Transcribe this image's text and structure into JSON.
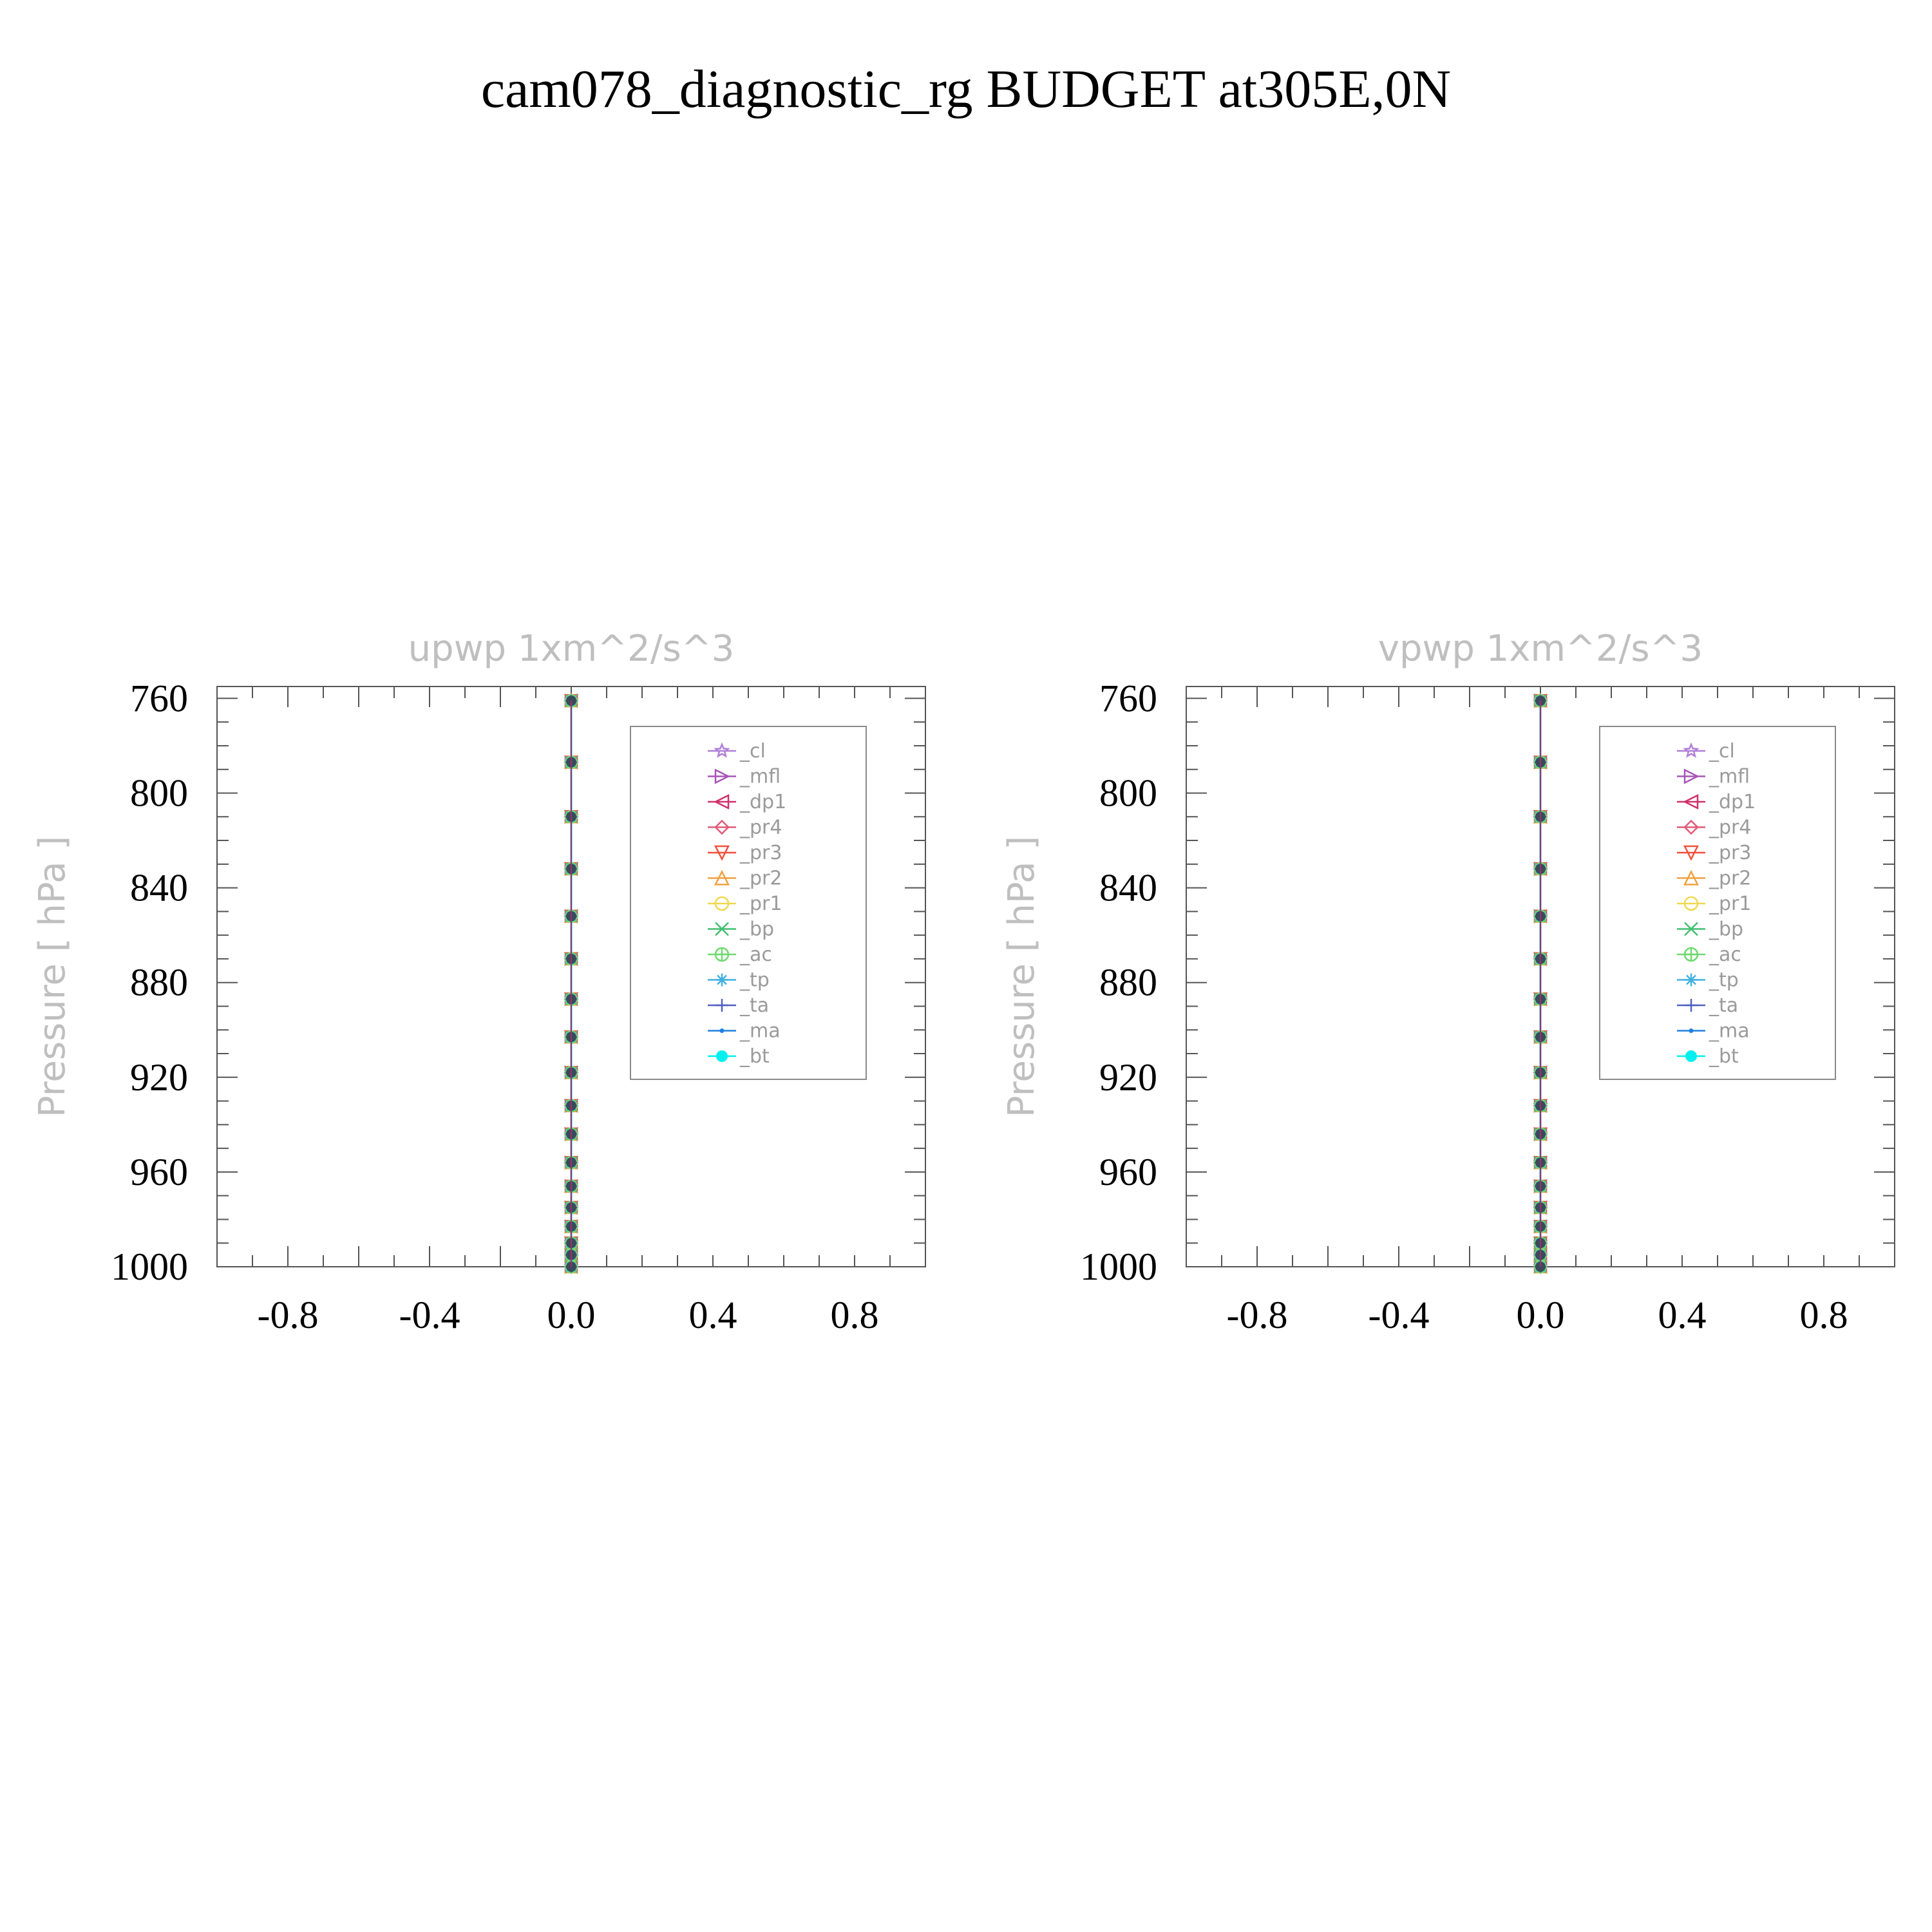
{
  "title": "cam078_diagnostic_rg  BUDGET at305E,0N",
  "y_axis_label": "Pressure  [ hPa ]",
  "colors": {
    "background": "#ffffff",
    "axis": "#555555",
    "muted_text": "#bfbfbf",
    "tick_label": "#000000"
  },
  "legend_entries": [
    {
      "label": "_cl",
      "color": "#b07fd8",
      "marker": "star"
    },
    {
      "label": "_mfl",
      "color": "#a855b5",
      "marker": "triangle-right"
    },
    {
      "label": "_dp1",
      "color": "#d0306a",
      "marker": "triangle-left"
    },
    {
      "label": "_pr4",
      "color": "#e05a78",
      "marker": "diamond"
    },
    {
      "label": "_pr3",
      "color": "#f0503c",
      "marker": "triangle-down"
    },
    {
      "label": "_pr2",
      "color": "#f0a040",
      "marker": "triangle-up"
    },
    {
      "label": "_pr1",
      "color": "#f0d850",
      "marker": "circle"
    },
    {
      "label": "_bp",
      "color": "#40c070",
      "marker": "cross-x"
    },
    {
      "label": "_ac",
      "color": "#70d870",
      "marker": "circle-plus"
    },
    {
      "label": "_tp",
      "color": "#40b0e0",
      "marker": "asterisk"
    },
    {
      "label": "_ta",
      "color": "#5060c0",
      "marker": "plus"
    },
    {
      "label": "_ma",
      "color": "#2080e0",
      "marker": "dot"
    },
    {
      "label": "_bt",
      "color": "#00f0f0",
      "marker": "filled-circle"
    }
  ],
  "chart_data": [
    {
      "type": "line",
      "title": "upwp    1xm^2/s^3",
      "xlabel": "",
      "ylabel": "Pressure  [ hPa ]",
      "xlim": [
        -1.0,
        1.0
      ],
      "ylim": [
        1000,
        755
      ],
      "y_inverted": true,
      "xticks": [
        "-0.8",
        "-0.4",
        "0.0",
        "0.4",
        "0.8"
      ],
      "xtick_values": [
        -0.8,
        -0.4,
        0.0,
        0.4,
        0.8
      ],
      "yticks": [
        "760",
        "800",
        "840",
        "880",
        "920",
        "960",
        "1000"
      ],
      "ytick_values": [
        760,
        800,
        840,
        880,
        920,
        960,
        1000
      ],
      "legend_position": "top-right",
      "levels": [
        761,
        787,
        810,
        832,
        852,
        870,
        887,
        903,
        918,
        932,
        944,
        956,
        966,
        975,
        983,
        990,
        995,
        1000
      ],
      "series": [
        {
          "name": "_cl",
          "values": [
            0,
            0,
            0,
            0,
            0,
            0,
            0,
            0,
            0,
            0,
            0,
            0,
            0,
            0,
            0,
            0,
            0,
            0
          ]
        },
        {
          "name": "_mfl",
          "values": [
            0,
            0,
            0,
            0,
            0,
            0,
            0,
            0,
            0,
            0,
            0,
            0,
            0,
            0,
            0,
            0,
            0,
            0
          ]
        },
        {
          "name": "_dp1",
          "values": [
            0,
            0,
            0,
            0,
            0,
            0,
            0,
            0,
            0,
            0,
            0,
            0,
            0,
            0,
            0,
            0,
            0,
            0
          ]
        },
        {
          "name": "_pr4",
          "values": [
            0,
            0,
            0,
            0,
            0,
            0,
            0,
            0,
            0,
            0,
            0,
            0,
            0,
            0,
            0,
            0,
            0,
            0
          ]
        },
        {
          "name": "_pr3",
          "values": [
            0,
            0,
            0,
            0,
            0,
            0,
            0,
            0,
            0,
            0,
            0,
            0,
            0,
            0,
            0,
            0,
            0,
            0
          ]
        },
        {
          "name": "_pr2",
          "values": [
            0,
            0,
            0,
            0,
            0,
            0,
            0,
            0,
            0,
            0,
            0,
            0,
            0,
            0,
            0,
            0,
            0,
            0
          ]
        },
        {
          "name": "_pr1",
          "values": [
            0,
            0,
            0,
            0,
            0,
            0,
            0,
            0,
            0,
            0,
            0,
            0,
            0,
            0,
            0,
            0,
            0,
            0
          ]
        },
        {
          "name": "_bp",
          "values": [
            0,
            0,
            0,
            0,
            0,
            0,
            0,
            0,
            0,
            0,
            0,
            0,
            0,
            0,
            0,
            0,
            0,
            0
          ]
        },
        {
          "name": "_ac",
          "values": [
            0,
            0,
            0,
            0,
            0,
            0,
            0,
            0,
            0,
            0,
            0,
            0,
            0,
            0,
            0,
            0,
            0,
            0
          ]
        },
        {
          "name": "_tp",
          "values": [
            0,
            0,
            0,
            0,
            0,
            0,
            0,
            0,
            0,
            0,
            0,
            0,
            0,
            0,
            0,
            0,
            0,
            0
          ]
        },
        {
          "name": "_ta",
          "values": [
            0,
            0,
            0,
            0,
            0,
            0,
            0,
            0,
            0,
            0,
            0,
            0,
            0,
            0,
            0,
            0,
            0,
            0
          ]
        },
        {
          "name": "_ma",
          "values": [
            0,
            0,
            0,
            0,
            0,
            0,
            0,
            0,
            0,
            0,
            0,
            0,
            0,
            0,
            0,
            0,
            0,
            0
          ]
        },
        {
          "name": "_bt",
          "values": [
            0,
            0,
            0,
            0,
            0,
            0,
            0,
            0,
            0,
            0,
            0,
            0,
            0,
            0,
            0,
            0,
            0,
            0
          ]
        }
      ]
    },
    {
      "type": "line",
      "title": "vpwp    1xm^2/s^3",
      "xlabel": "",
      "ylabel": "Pressure  [ hPa ]",
      "xlim": [
        -1.0,
        1.0
      ],
      "ylim": [
        1000,
        755
      ],
      "y_inverted": true,
      "xticks": [
        "-0.8",
        "-0.4",
        "0.0",
        "0.4",
        "0.8"
      ],
      "xtick_values": [
        -0.8,
        -0.4,
        0.0,
        0.4,
        0.8
      ],
      "yticks": [
        "760",
        "800",
        "840",
        "880",
        "920",
        "960",
        "1000"
      ],
      "ytick_values": [
        760,
        800,
        840,
        880,
        920,
        960,
        1000
      ],
      "legend_position": "top-right",
      "levels": [
        761,
        787,
        810,
        832,
        852,
        870,
        887,
        903,
        918,
        932,
        944,
        956,
        966,
        975,
        983,
        990,
        995,
        1000
      ],
      "series": [
        {
          "name": "_cl",
          "values": [
            0,
            0,
            0,
            0,
            0,
            0,
            0,
            0,
            0,
            0,
            0,
            0,
            0,
            0,
            0,
            0,
            0,
            0
          ]
        },
        {
          "name": "_mfl",
          "values": [
            0,
            0,
            0,
            0,
            0,
            0,
            0,
            0,
            0,
            0,
            0,
            0,
            0,
            0,
            0,
            0,
            0,
            0
          ]
        },
        {
          "name": "_dp1",
          "values": [
            0,
            0,
            0,
            0,
            0,
            0,
            0,
            0,
            0,
            0,
            0,
            0,
            0,
            0,
            0,
            0,
            0,
            0
          ]
        },
        {
          "name": "_pr4",
          "values": [
            0,
            0,
            0,
            0,
            0,
            0,
            0,
            0,
            0,
            0,
            0,
            0,
            0,
            0,
            0,
            0,
            0,
            0
          ]
        },
        {
          "name": "_pr3",
          "values": [
            0,
            0,
            0,
            0,
            0,
            0,
            0,
            0,
            0,
            0,
            0,
            0,
            0,
            0,
            0,
            0,
            0,
            0
          ]
        },
        {
          "name": "_pr2",
          "values": [
            0,
            0,
            0,
            0,
            0,
            0,
            0,
            0,
            0,
            0,
            0,
            0,
            0,
            0,
            0,
            0,
            0,
            0
          ]
        },
        {
          "name": "_pr1",
          "values": [
            0,
            0,
            0,
            0,
            0,
            0,
            0,
            0,
            0,
            0,
            0,
            0,
            0,
            0,
            0,
            0,
            0,
            0
          ]
        },
        {
          "name": "_bp",
          "values": [
            0,
            0,
            0,
            0,
            0,
            0,
            0,
            0,
            0,
            0,
            0,
            0,
            0,
            0,
            0,
            0,
            0,
            0
          ]
        },
        {
          "name": "_ac",
          "values": [
            0,
            0,
            0,
            0,
            0,
            0,
            0,
            0,
            0,
            0,
            0,
            0,
            0,
            0,
            0,
            0,
            0,
            0
          ]
        },
        {
          "name": "_tp",
          "values": [
            0,
            0,
            0,
            0,
            0,
            0,
            0,
            0,
            0,
            0,
            0,
            0,
            0,
            0,
            0,
            0,
            0,
            0
          ]
        },
        {
          "name": "_ta",
          "values": [
            0,
            0,
            0,
            0,
            0,
            0,
            0,
            0,
            0,
            0,
            0,
            0,
            0,
            0,
            0,
            0,
            0,
            0
          ]
        },
        {
          "name": "_ma",
          "values": [
            0,
            0,
            0,
            0,
            0,
            0,
            0,
            0,
            0,
            0,
            0,
            0,
            0,
            0,
            0,
            0,
            0,
            0
          ]
        },
        {
          "name": "_bt",
          "values": [
            0,
            0,
            0,
            0,
            0,
            0,
            0,
            0,
            0,
            0,
            0,
            0,
            0,
            0,
            0,
            0,
            0,
            0
          ]
        }
      ]
    }
  ]
}
